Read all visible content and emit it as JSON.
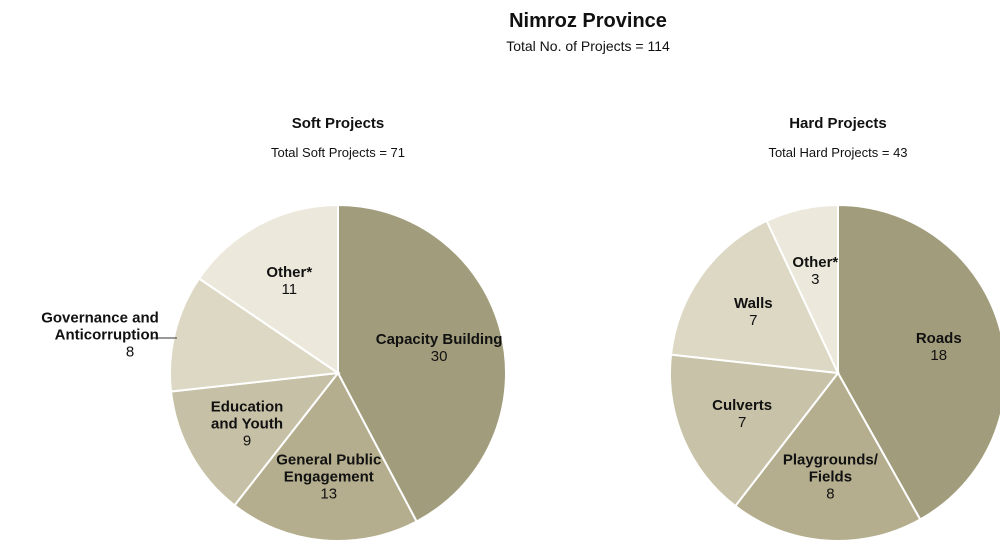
{
  "title": "Nimroz Province",
  "subtitle": "Total No. of Projects = 114",
  "chart_data": [
    {
      "type": "pie",
      "title": "Soft Projects",
      "subtitle": "Total Soft Projects = 71",
      "categories": [
        "Capacity Building",
        "General Public\nEngagement",
        "Education\nand Youth",
        "Governance and\nAnticorruption",
        "Other*"
      ],
      "values": [
        30,
        13,
        9,
        8,
        11
      ],
      "colors": [
        "#a19d7c",
        "#b4ae8e",
        "#c6c1a6",
        "#dcd8c4",
        "#ece9dc"
      ]
    },
    {
      "type": "pie",
      "title": "Hard Projects",
      "subtitle": "Total Hard Projects = 43",
      "categories": [
        "Roads",
        "Playgrounds/\nFields",
        "Culverts",
        "Walls",
        "Other*"
      ],
      "values": [
        18,
        8,
        7,
        7,
        3
      ],
      "colors": [
        "#a19d7c",
        "#b4ae8e",
        "#c8c3a8",
        "#dcd8c4",
        "#ece9dc"
      ]
    }
  ]
}
